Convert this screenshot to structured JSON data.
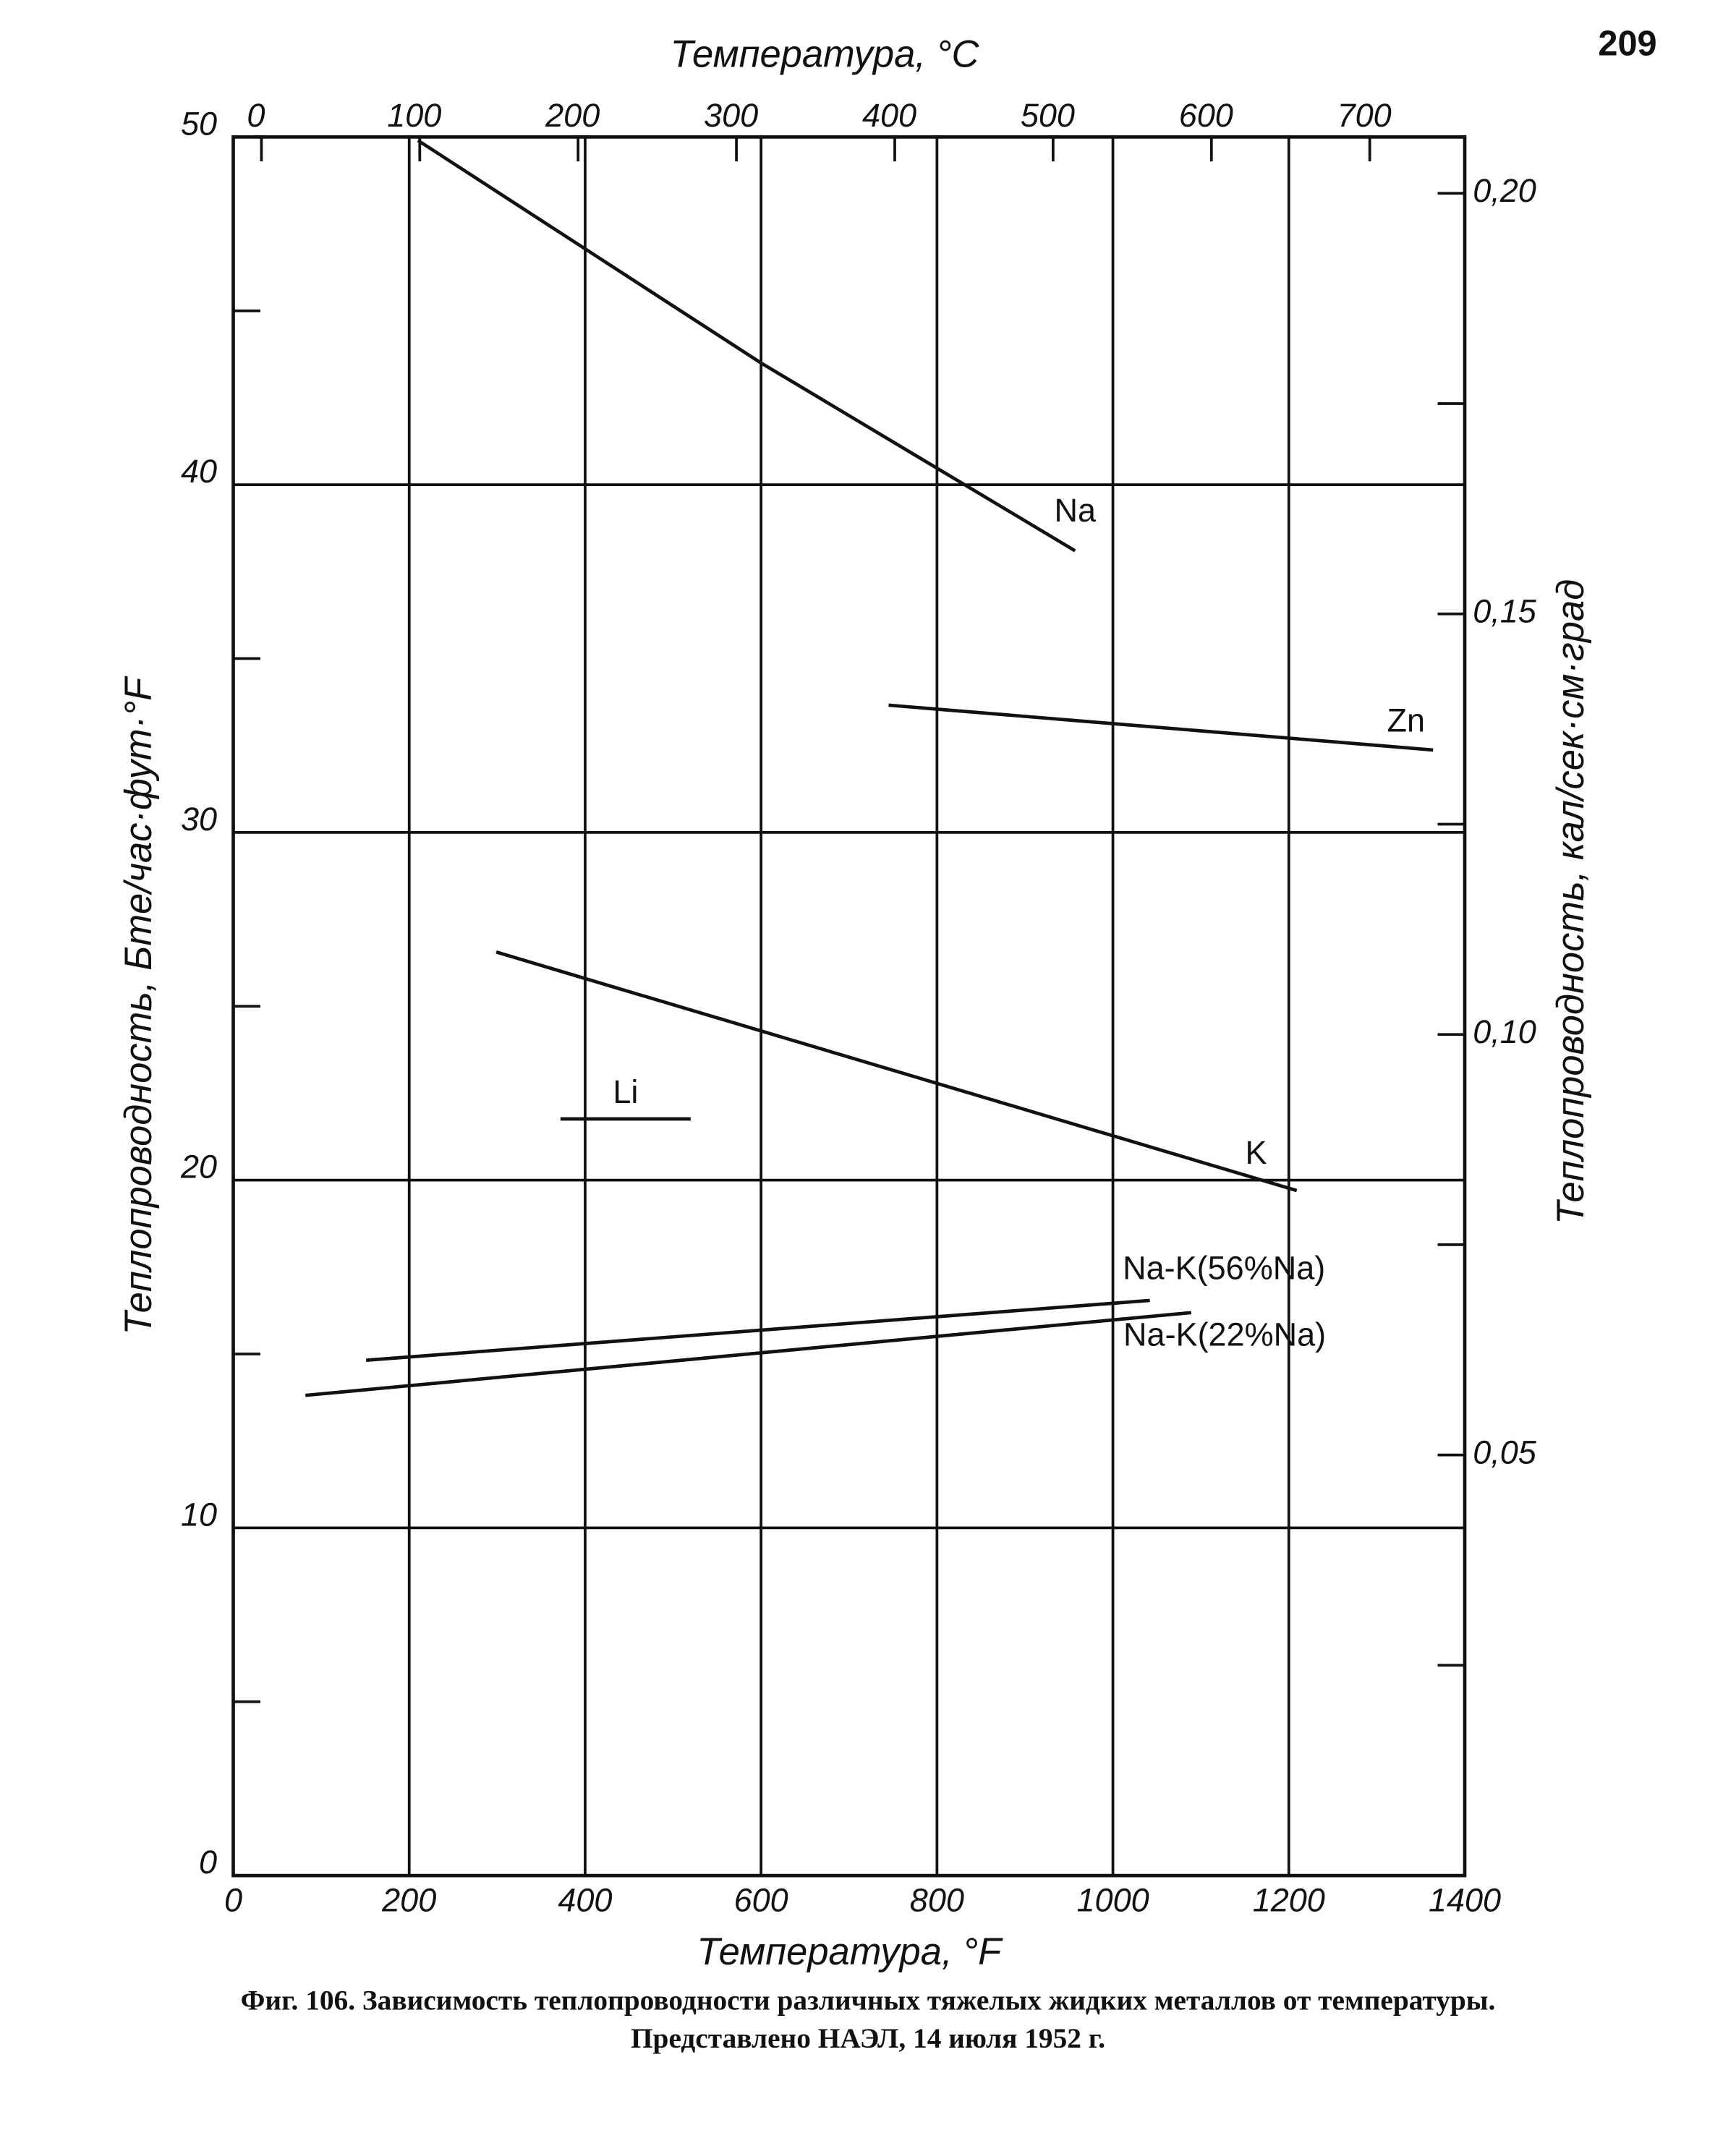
{
  "page_number": "209",
  "chart_data": {
    "type": "line",
    "caption": "Фиг. 106. Зависимость теплопроводности различных тяжелых жидких металлов от температуры.",
    "source_note": "Представлено НАЭЛ, 14 июля 1952 г.",
    "xlabel": "Температура, °F",
    "x2label": "Температура, °C",
    "ylabel": "Теплопроводность, Бте/час·фут·°F",
    "y2label": "Теплопроводность, кал/сек·см·град",
    "xlim": [
      0,
      1400
    ],
    "xticks": [
      0,
      200,
      400,
      600,
      800,
      1000,
      1200,
      1400
    ],
    "x2lim": [
      -17.78,
      760
    ],
    "x2ticks": [
      0,
      100,
      200,
      300,
      400,
      500,
      600,
      700
    ],
    "ylim": [
      0,
      50
    ],
    "yticks": [
      0,
      10,
      20,
      30,
      40,
      50
    ],
    "yminor": [
      5,
      15,
      25,
      35,
      45
    ],
    "y2lim": [
      0,
      0.2067
    ],
    "y2ticks": [
      {
        "value": 0.05,
        "label": "0,05"
      },
      {
        "value": 0.1,
        "label": "0,10"
      },
      {
        "value": 0.15,
        "label": "0,15"
      },
      {
        "value": 0.2,
        "label": "0,20"
      }
    ],
    "y2minor": [
      0.025,
      0.075,
      0.125,
      0.175
    ],
    "grid": true,
    "color": "#111111",
    "series": [
      {
        "name": "Na",
        "x": [
          210,
          600,
          957
        ],
        "values": [
          49.9,
          43.5,
          38.1
        ]
      },
      {
        "name": "Zn",
        "x": [
          745,
          1364
        ],
        "values": [
          33.66,
          32.37
        ]
      },
      {
        "name": "K",
        "x": [
          299,
          1209
        ],
        "values": [
          26.56,
          19.7
        ]
      },
      {
        "name": "Li",
        "x": [
          372,
          520
        ],
        "values": [
          21.76,
          21.76
        ]
      },
      {
        "name": "Na-K(56%Na)",
        "x": [
          151,
          1042
        ],
        "values": [
          14.82,
          16.54
        ]
      },
      {
        "name": "Na-K(22%Na)",
        "x": [
          82,
          1089
        ],
        "values": [
          13.81,
          16.19
        ]
      }
    ]
  }
}
